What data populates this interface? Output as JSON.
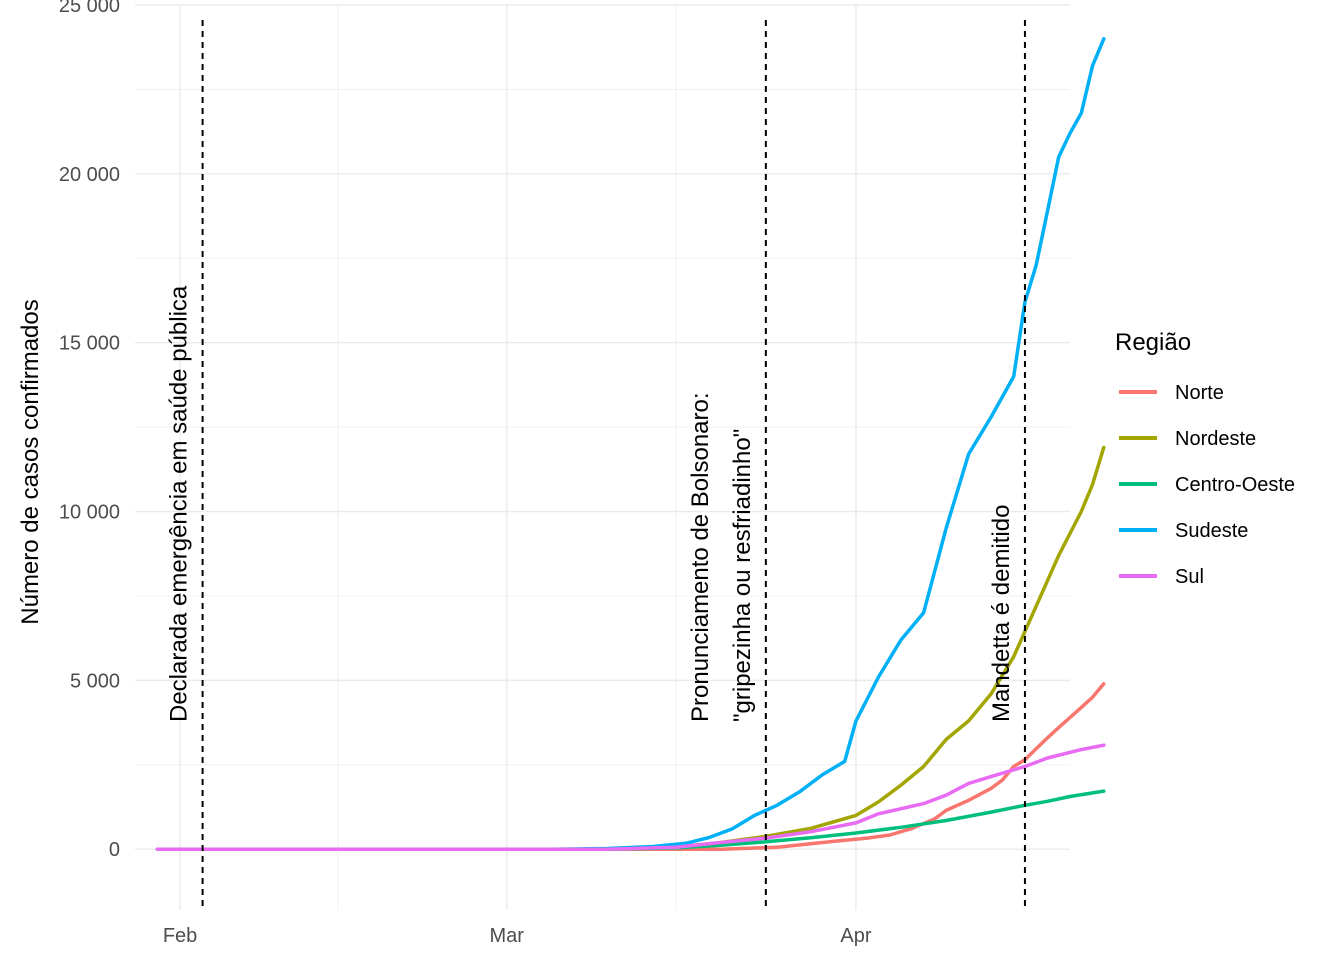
{
  "chart_data": {
    "type": "line",
    "title": "",
    "xlabel": "",
    "ylabel": "Número de casos confirmados",
    "x_range": [
      "2020-01-28",
      "2020-04-20"
    ],
    "ylim": [
      -1800,
      25000
    ],
    "y_ticks": [
      0,
      5000,
      10000,
      15000,
      20000,
      25000
    ],
    "y_tick_labels": [
      "0",
      "5 000",
      "10 000",
      "15 000",
      "20 000",
      "25 000"
    ],
    "x_ticks": [
      "2020-02-01",
      "2020-03-01",
      "2020-04-01"
    ],
    "x_tick_labels": [
      "Feb",
      "Mar",
      "Apr"
    ],
    "grid": true,
    "legend": {
      "title": "Região",
      "position": "right"
    },
    "annotations": [
      {
        "date": "2020-02-03",
        "lines": [
          "Declarada emergência em saúde pública"
        ]
      },
      {
        "date": "2020-03-24",
        "lines": [
          "Pronunciamento de Bolsonaro:",
          "\"gripezinha ou resfriadinho\""
        ]
      },
      {
        "date": "2020-04-16",
        "lines": [
          "Mandetta é demitido"
        ]
      }
    ],
    "series": [
      {
        "name": "Norte",
        "color": "#F8766D",
        "points": [
          [
            "2020-01-30",
            0
          ],
          [
            "2020-03-20",
            0
          ],
          [
            "2020-03-25",
            60
          ],
          [
            "2020-03-30",
            230
          ],
          [
            "2020-04-02",
            330
          ],
          [
            "2020-04-04",
            420
          ],
          [
            "2020-04-06",
            620
          ],
          [
            "2020-04-08",
            900
          ],
          [
            "2020-04-09",
            1150
          ],
          [
            "2020-04-11",
            1450
          ],
          [
            "2020-04-13",
            1800
          ],
          [
            "2020-04-14",
            2050
          ],
          [
            "2020-04-15",
            2450
          ],
          [
            "2020-04-16",
            2650
          ],
          [
            "2020-04-18",
            3300
          ],
          [
            "2020-04-19",
            3600
          ],
          [
            "2020-04-21",
            4200
          ],
          [
            "2020-04-22",
            4500
          ],
          [
            "2020-04-23",
            4900
          ]
        ]
      },
      {
        "name": "Nordeste",
        "color": "#A3A500",
        "points": [
          [
            "2020-01-30",
            0
          ],
          [
            "2020-03-10",
            0
          ],
          [
            "2020-03-16",
            60
          ],
          [
            "2020-03-20",
            200
          ],
          [
            "2020-03-24",
            380
          ],
          [
            "2020-03-28",
            620
          ],
          [
            "2020-04-01",
            1000
          ],
          [
            "2020-04-03",
            1400
          ],
          [
            "2020-04-05",
            1900
          ],
          [
            "2020-04-07",
            2450
          ],
          [
            "2020-04-09",
            3250
          ],
          [
            "2020-04-11",
            3800
          ],
          [
            "2020-04-13",
            4600
          ],
          [
            "2020-04-15",
            5700
          ],
          [
            "2020-04-17",
            7200
          ],
          [
            "2020-04-19",
            8700
          ],
          [
            "2020-04-21",
            10000
          ],
          [
            "2020-04-22",
            10800
          ],
          [
            "2020-04-23",
            11900
          ]
        ]
      },
      {
        "name": "Centro-Oeste",
        "color": "#00BF7D",
        "points": [
          [
            "2020-01-30",
            0
          ],
          [
            "2020-03-10",
            0
          ],
          [
            "2020-03-16",
            40
          ],
          [
            "2020-03-20",
            120
          ],
          [
            "2020-03-24",
            220
          ],
          [
            "2020-03-28",
            340
          ],
          [
            "2020-04-01",
            480
          ],
          [
            "2020-04-05",
            650
          ],
          [
            "2020-04-09",
            850
          ],
          [
            "2020-04-13",
            1100
          ],
          [
            "2020-04-16",
            1300
          ],
          [
            "2020-04-18",
            1420
          ],
          [
            "2020-04-20",
            1560
          ],
          [
            "2020-04-23",
            1720
          ]
        ]
      },
      {
        "name": "Sudeste",
        "color": "#00B0F6",
        "points": [
          [
            "2020-01-30",
            0
          ],
          [
            "2020-03-05",
            0
          ],
          [
            "2020-03-10",
            20
          ],
          [
            "2020-03-14",
            80
          ],
          [
            "2020-03-17",
            180
          ],
          [
            "2020-03-19",
            350
          ],
          [
            "2020-03-21",
            600
          ],
          [
            "2020-03-23",
            1000
          ],
          [
            "2020-03-25",
            1300
          ],
          [
            "2020-03-27",
            1700
          ],
          [
            "2020-03-29",
            2200
          ],
          [
            "2020-03-31",
            2600
          ],
          [
            "2020-04-01",
            3800
          ],
          [
            "2020-04-03",
            5100
          ],
          [
            "2020-04-05",
            6200
          ],
          [
            "2020-04-07",
            7000
          ],
          [
            "2020-04-09",
            9500
          ],
          [
            "2020-04-11",
            11700
          ],
          [
            "2020-04-13",
            12800
          ],
          [
            "2020-04-15",
            14000
          ],
          [
            "2020-04-16",
            16200
          ],
          [
            "2020-04-17",
            17300
          ],
          [
            "2020-04-18",
            18900
          ],
          [
            "2020-04-19",
            20500
          ],
          [
            "2020-04-20",
            21200
          ],
          [
            "2020-04-21",
            21800
          ],
          [
            "2020-04-22",
            23200
          ],
          [
            "2020-04-23",
            24000
          ]
        ]
      },
      {
        "name": "Sul",
        "color": "#E76BF3",
        "points": [
          [
            "2020-01-30",
            0
          ],
          [
            "2020-03-10",
            0
          ],
          [
            "2020-03-16",
            60
          ],
          [
            "2020-03-20",
            200
          ],
          [
            "2020-03-24",
            330
          ],
          [
            "2020-03-28",
            520
          ],
          [
            "2020-04-01",
            780
          ],
          [
            "2020-04-03",
            1050
          ],
          [
            "2020-04-07",
            1350
          ],
          [
            "2020-04-09",
            1600
          ],
          [
            "2020-04-11",
            1950
          ],
          [
            "2020-04-13",
            2150
          ],
          [
            "2020-04-16",
            2450
          ],
          [
            "2020-04-18",
            2700
          ],
          [
            "2020-04-21",
            2950
          ],
          [
            "2020-04-23",
            3080
          ]
        ]
      }
    ]
  }
}
